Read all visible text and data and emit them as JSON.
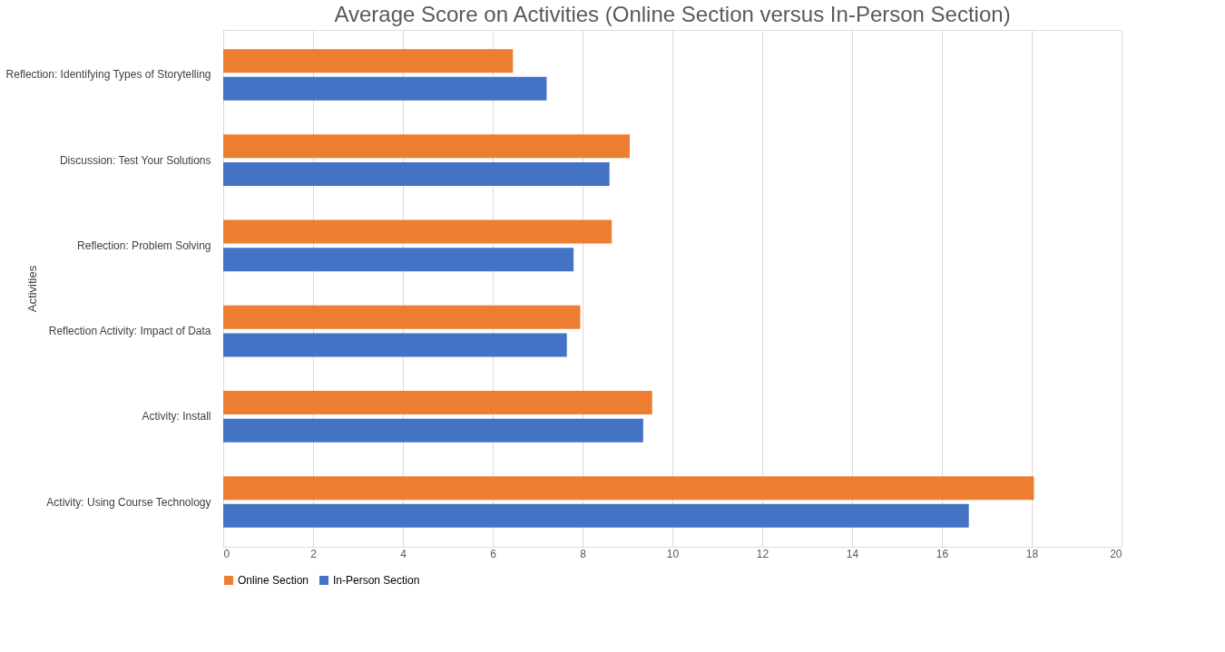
{
  "chart_data": {
    "type": "bar",
    "orientation": "horizontal",
    "title": "Average Score on Activities (Online Section versus In-Person Section)",
    "ylabel": "Activities",
    "categories": [
      "Reflection: Identifying Types of Storytelling",
      "Discussion: Test Your Solutions",
      "Reflection: Problem Solving",
      "Reflection Activity: Impact of Data",
      "Activity: Install",
      "Activity: Using Course Technology"
    ],
    "series": [
      {
        "name": "Online Section",
        "color": "#ed7d31",
        "values": [
          6.45,
          9.05,
          8.65,
          7.95,
          9.55,
          18.05
        ]
      },
      {
        "name": "In-Person Section",
        "color": "#4472c4",
        "values": [
          7.2,
          8.6,
          7.8,
          7.65,
          9.35,
          16.6
        ]
      }
    ],
    "xlim": [
      0,
      20
    ],
    "xticks": [
      0,
      2,
      4,
      6,
      8,
      10,
      12,
      14,
      16,
      18,
      20
    ],
    "grid": "x",
    "legend": "bottom"
  }
}
